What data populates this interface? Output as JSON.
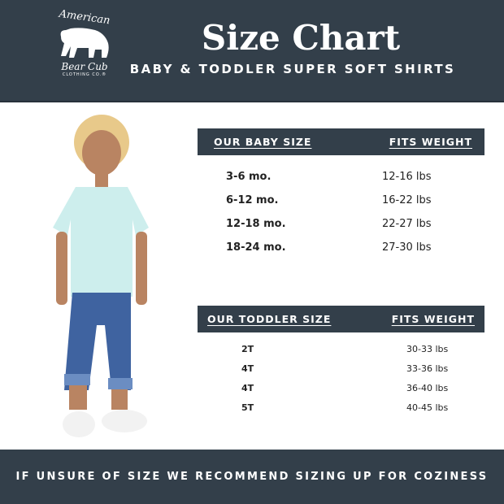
{
  "header": {
    "logo": {
      "line1": "American",
      "line2": "Bear Cub",
      "line3": "CLOTHING CO.®",
      "icon": "bear-icon"
    },
    "title": "Size Chart",
    "subtitle": "BABY & TODDLER SUPER SOFT SHIRTS"
  },
  "baby_table": {
    "headers": [
      "OUR BABY SIZE",
      "FITS WEIGHT"
    ],
    "rows": [
      {
        "size": "3-6 mo.",
        "weight": "12-16 lbs"
      },
      {
        "size": "6-12 mo.",
        "weight": "16-22 lbs"
      },
      {
        "size": "12-18 mo.",
        "weight": "22-27 lbs"
      },
      {
        "size": "18-24 mo.",
        "weight": "27-30 lbs"
      }
    ]
  },
  "toddler_table": {
    "headers": [
      "OUR TODDLER SIZE",
      "FITS WEIGHT"
    ],
    "rows": [
      {
        "size": "2T",
        "weight": "30-33 lbs"
      },
      {
        "size": "4T",
        "weight": "33-36 lbs"
      },
      {
        "size": "4T",
        "weight": "36-40 lbs"
      },
      {
        "size": "5T",
        "weight": "40-45 lbs"
      }
    ]
  },
  "footer": {
    "note": "IF UNSURE OF SIZE WE RECOMMEND SIZING UP FOR COZINESS"
  },
  "colors": {
    "banner": "#333f4a",
    "shirt": "#cdeeed",
    "jeans": "#3f63a0"
  }
}
